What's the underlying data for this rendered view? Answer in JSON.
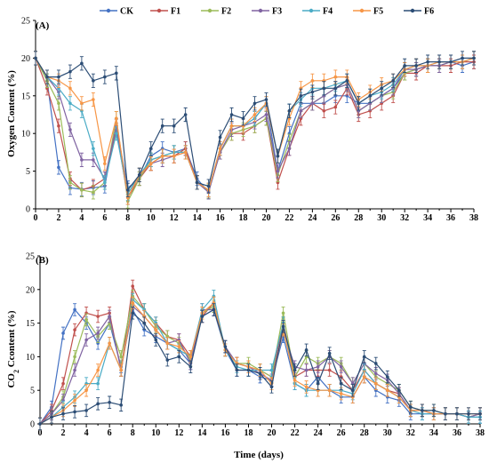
{
  "colors": {
    "CK": "#4472c4",
    "F1": "#c0504d",
    "F2": "#9bbb59",
    "F3": "#8064a2",
    "F4": "#4bacc6",
    "F5": "#f79646",
    "F6": "#2c4d75"
  },
  "chart_data": [
    {
      "type": "line",
      "panel_label": "(A)",
      "ylabel": "Oxygen Content (%)",
      "xlabel": "",
      "xlim": [
        0,
        38
      ],
      "ylim": [
        0,
        25
      ],
      "xticks": [
        "0",
        "2",
        "4",
        "6",
        "8",
        "10",
        "12",
        "14",
        "16",
        "18",
        "20",
        "22",
        "24",
        "26",
        "28",
        "30",
        "32",
        "34",
        "36",
        "38"
      ],
      "yticks": [
        "0",
        "5",
        "10",
        "15",
        "20",
        "25"
      ],
      "legend_position": "top",
      "x": [
        0,
        1,
        2,
        3,
        4,
        5,
        6,
        7,
        8,
        9,
        10,
        11,
        12,
        13,
        14,
        15,
        16,
        17,
        18,
        19,
        20,
        21,
        22,
        23,
        24,
        25,
        26,
        27,
        28,
        29,
        30,
        31,
        32,
        33,
        34,
        35,
        36,
        37,
        38
      ],
      "series": [
        {
          "name": "CK",
          "values": [
            20,
            17,
            5.5,
            2.8,
            2.6,
            2.8,
            3.0,
            11,
            2.8,
            4,
            7,
            8,
            7.5,
            8,
            4,
            2.2,
            8,
            11,
            11,
            12,
            14,
            5,
            10,
            14,
            14,
            14,
            15,
            15,
            14,
            14,
            15,
            16,
            18,
            18.5,
            19,
            19,
            19.5,
            19,
            19.5
          ]
        },
        {
          "name": "F1",
          "values": [
            20,
            16,
            11,
            4,
            2.5,
            3,
            4,
            10.5,
            1.5,
            4,
            6,
            7,
            7,
            8,
            3.5,
            2.5,
            7.5,
            10,
            10,
            11,
            12,
            3.5,
            8,
            12,
            14,
            13,
            13.5,
            16,
            12.5,
            13,
            14,
            15,
            18,
            18,
            19,
            19,
            19,
            19.5,
            19.5
          ]
        },
        {
          "name": "F2",
          "values": [
            20,
            17,
            14,
            3.5,
            2.5,
            2.2,
            3.5,
            12,
            1,
            4,
            6.5,
            7,
            7.5,
            7.5,
            3.5,
            2.3,
            7.5,
            10,
            10.5,
            11,
            12,
            4.5,
            9,
            13,
            14,
            15,
            16,
            16.5,
            13,
            14,
            15,
            15.5,
            18,
            18.5,
            19,
            19,
            19.5,
            19.5,
            20
          ]
        },
        {
          "name": "F3",
          "values": [
            20,
            17.5,
            15.5,
            10.5,
            6.5,
            6.5,
            4,
            11,
            1.5,
            4.5,
            6,
            6.5,
            7,
            7.5,
            3.5,
            2.2,
            7.5,
            10.5,
            11,
            11.5,
            12.5,
            5,
            8,
            13,
            14,
            15,
            16,
            16.5,
            13,
            14,
            15,
            16,
            18.5,
            18.5,
            19,
            19,
            19.5,
            19.5,
            20
          ]
        },
        {
          "name": "F4",
          "values": [
            20,
            17.5,
            16,
            14,
            13,
            8,
            3.5,
            10,
            2,
            4.5,
            6.5,
            7,
            7.5,
            7.5,
            3.5,
            2.5,
            8,
            11,
            11,
            12,
            14,
            7,
            13,
            14.5,
            16,
            16,
            16.5,
            17,
            14,
            15,
            15.5,
            16.5,
            18.5,
            19,
            19,
            19.5,
            19.5,
            19.5,
            20
          ]
        },
        {
          "name": "F5",
          "values": [
            20,
            17.5,
            17,
            16,
            14,
            14.5,
            6,
            12,
            1.5,
            4.5,
            6,
            7,
            7,
            7.5,
            3.5,
            2.5,
            8,
            11,
            11,
            12.5,
            14,
            7,
            12,
            16,
            17,
            17,
            17.5,
            17.5,
            14.5,
            15.5,
            16.5,
            17,
            18.5,
            19,
            19,
            19.5,
            19.5,
            19.5,
            20
          ]
        },
        {
          "name": "F6",
          "values": [
            20,
            17.5,
            17.5,
            18.2,
            19.3,
            17,
            17.5,
            18,
            2.5,
            4.5,
            8,
            11,
            11,
            12.5,
            3.5,
            3,
            9.5,
            12.5,
            12,
            14,
            14.5,
            7,
            13,
            15,
            15.5,
            16,
            16,
            17,
            14,
            15,
            16,
            17,
            19,
            19,
            19.5,
            19.5,
            19.5,
            20,
            20
          ]
        }
      ]
    },
    {
      "type": "line",
      "panel_label": "(B)",
      "ylabel": "CO2 Ccontent (%)",
      "ylabel_main": "CO",
      "ylabel_sub": "2",
      "ylabel_rest": " Ccontent (%)",
      "xlabel": "Time (days)",
      "xlim": [
        0,
        38
      ],
      "ylim": [
        0,
        25
      ],
      "xticks": [
        "0",
        "2",
        "4",
        "6",
        "8",
        "10",
        "12",
        "14",
        "16",
        "18",
        "20",
        "22",
        "24",
        "26",
        "28",
        "30",
        "32",
        "34",
        "36",
        "38"
      ],
      "yticks": [
        "0",
        "5",
        "10",
        "15",
        "20",
        "25"
      ],
      "x": [
        0,
        1,
        2,
        3,
        4,
        5,
        6,
        7,
        8,
        9,
        10,
        11,
        12,
        13,
        14,
        15,
        16,
        17,
        18,
        19,
        20,
        21,
        22,
        23,
        24,
        25,
        26,
        27,
        28,
        29,
        30,
        31,
        32,
        33,
        34,
        35,
        36,
        37,
        38
      ],
      "series": [
        {
          "name": "CK",
          "values": [
            0,
            2.5,
            13.5,
            17,
            15,
            12,
            15,
            8.5,
            17,
            14,
            13,
            12,
            11,
            9,
            16,
            17,
            11,
            8,
            8,
            7,
            6.5,
            13,
            6,
            5,
            7,
            5,
            4,
            4,
            7,
            5,
            4,
            3.5,
            1.5,
            1.5,
            1.5,
            1.5,
            1.5,
            1,
            1
          ]
        },
        {
          "name": "F1",
          "values": [
            0,
            2,
            6,
            14,
            16.5,
            16,
            16.5,
            8,
            20.5,
            17,
            15,
            13,
            12.5,
            10,
            16,
            18,
            11,
            9,
            8.5,
            8,
            7,
            15,
            7,
            8,
            8,
            8,
            7,
            5,
            8,
            6,
            5,
            4.5,
            2,
            2,
            1.5,
            1.5,
            1.5,
            1,
            1.5
          ]
        },
        {
          "name": "F2",
          "values": [
            0,
            1.5,
            4,
            10,
            15.5,
            13,
            15,
            10,
            19,
            17,
            14.5,
            13,
            12,
            9.5,
            16.5,
            17.5,
            11,
            9,
            9,
            8,
            7,
            16.5,
            7,
            10,
            9,
            10,
            9,
            6,
            9,
            7,
            6,
            5,
            2.5,
            2,
            2,
            1.5,
            1.5,
            1,
            1.5
          ]
        },
        {
          "name": "F3",
          "values": [
            0,
            1.5,
            3.5,
            8,
            12.5,
            13.5,
            16,
            8,
            17.5,
            16,
            14,
            12,
            12.5,
            9,
            17,
            17,
            11.5,
            9,
            8.5,
            7.5,
            6.5,
            14,
            8.5,
            8,
            8.5,
            10,
            8.5,
            6,
            9,
            7.5,
            6.5,
            4.5,
            2,
            2,
            1.5,
            1.5,
            1.5,
            1,
            1.5
          ]
        },
        {
          "name": "F4",
          "values": [
            0,
            1,
            2.5,
            4,
            6,
            6,
            12,
            8,
            18.5,
            17,
            15,
            12,
            11,
            10,
            17,
            19,
            11,
            8.5,
            8,
            8,
            8,
            15,
            6,
            5,
            5,
            5,
            5,
            4.5,
            8,
            6,
            5,
            4,
            2,
            1.5,
            1.5,
            1.5,
            1.5,
            1,
            1
          ]
        },
        {
          "name": "F5",
          "values": [
            0,
            1,
            2,
            3.5,
            5,
            8,
            12,
            8,
            18,
            16,
            14,
            12,
            11.5,
            10,
            16.5,
            18,
            11,
            9,
            8.5,
            8,
            6,
            14,
            6.5,
            5.5,
            5,
            5,
            4.5,
            4,
            7,
            6,
            5,
            4,
            2,
            2,
            1.5,
            1.5,
            1.5,
            1.5,
            1.5
          ]
        },
        {
          "name": "F6",
          "values": [
            0,
            1,
            1.5,
            1.8,
            2,
            3,
            3.2,
            2.8,
            16.5,
            15,
            12.5,
            9.5,
            10,
            8.5,
            16,
            17,
            11.5,
            8,
            8,
            7.5,
            5.5,
            14.5,
            8,
            11,
            6,
            10.5,
            6,
            5,
            10,
            9,
            7,
            5,
            2.5,
            2,
            2,
            1.5,
            1.5,
            1.5,
            1.5
          ]
        }
      ]
    }
  ]
}
